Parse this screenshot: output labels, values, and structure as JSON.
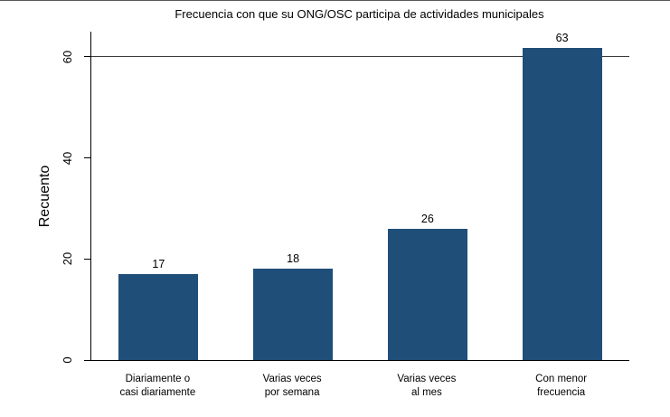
{
  "chart_data": {
    "type": "bar",
    "title": "Frecuencia con que su ONG/OSC participa de actividades municipales",
    "ylabel": "Recuento",
    "xlabel": "",
    "categories": [
      "Diariamente o\ncasi diariamente",
      "Varias veces\npor semana",
      "Varias veces\nal mes",
      "Con menor\nfrecuencia"
    ],
    "values": [
      17,
      18,
      26,
      63
    ],
    "value_labels": [
      "17",
      "18",
      "26",
      "63"
    ],
    "yticks": [
      0,
      20,
      40,
      60
    ],
    "ylim": [
      0,
      65
    ],
    "reference_line": 60,
    "bar_color": "#1F4E79",
    "grid": false,
    "legend_position": "none"
  }
}
